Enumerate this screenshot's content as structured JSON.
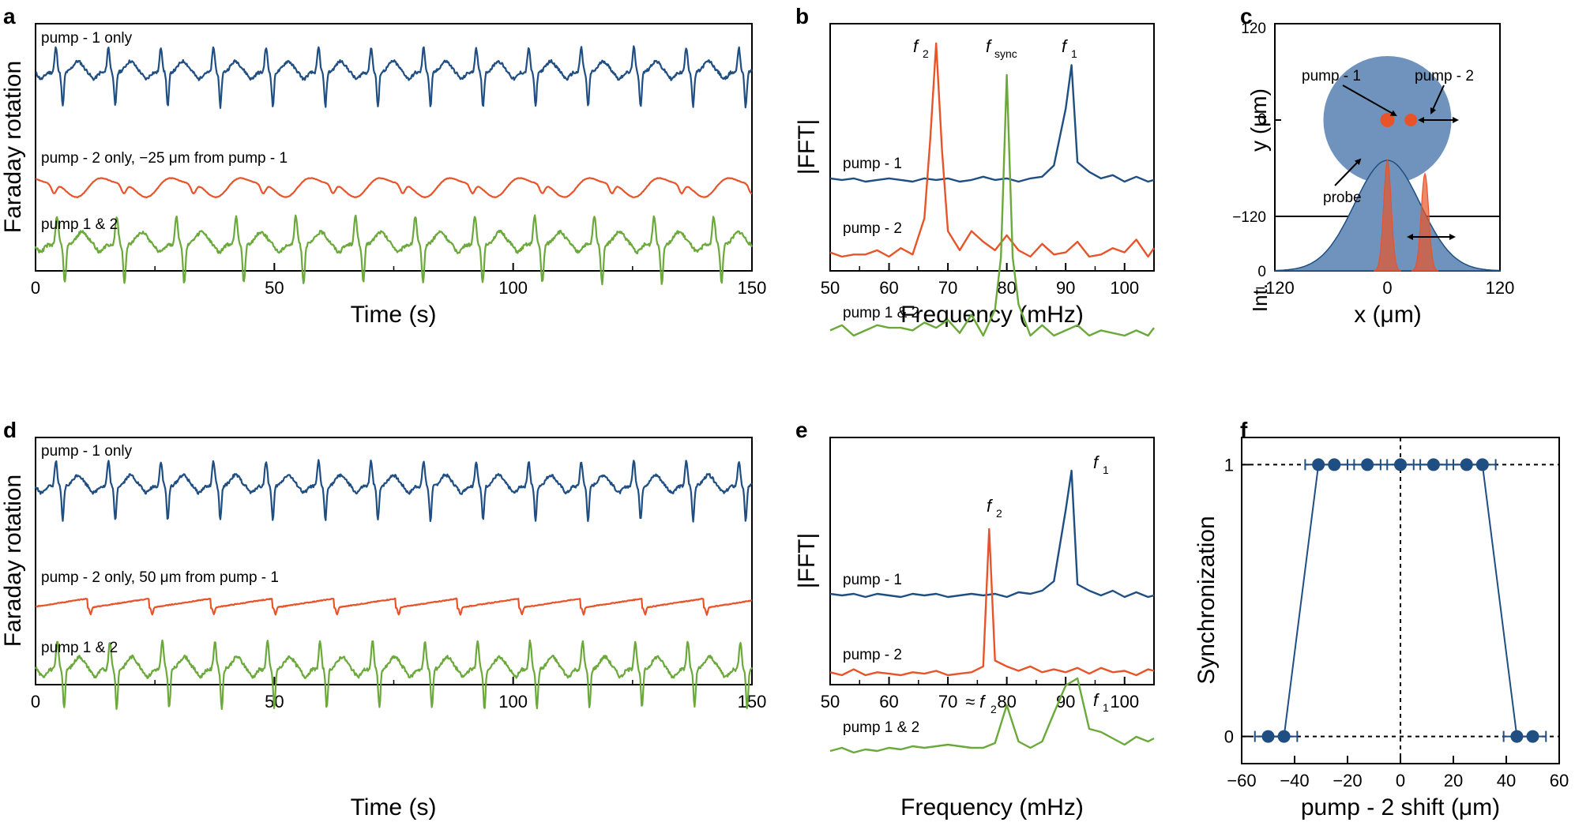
{
  "panels": {
    "a": {
      "letter": "a",
      "ylabel": "Faraday rotation",
      "xlabel": "Time (s)",
      "xticks": [
        "0",
        "50",
        "100",
        "150"
      ],
      "trace_labels": [
        "pump - 1 only",
        "pump - 2 only,  −25 μm from pump - 1",
        "pump 1 & 2"
      ]
    },
    "b": {
      "letter": "b",
      "ylabel": "|FFT|",
      "xlabel": "Frequency (mHz)",
      "xticks": [
        "50",
        "60",
        "70",
        "80",
        "90",
        "100"
      ],
      "trace_labels": [
        "pump - 1",
        "pump - 2",
        "pump 1 & 2"
      ],
      "peak_labels": [
        {
          "base": "f",
          "sub": "2"
        },
        {
          "base": "f",
          "sub": "sync"
        },
        {
          "base": "f",
          "sub": "1"
        }
      ]
    },
    "c": {
      "letter": "c",
      "ylabel_top": "y (μm)",
      "ylabel_bottom": "Int.",
      "xlabel": "x (μm)",
      "yticks_top": [
        "120",
        "0",
        "−120"
      ],
      "ytick_bottom": "0",
      "xticks": [
        "−120",
        "0",
        "120"
      ],
      "annotations": [
        "pump - 1",
        "pump - 2",
        "probe"
      ]
    },
    "d": {
      "letter": "d",
      "ylabel": "Faraday rotation",
      "xlabel": "Time (s)",
      "xticks": [
        "0",
        "50",
        "100",
        "150"
      ],
      "trace_labels": [
        "pump - 1 only",
        "pump - 2 only, 50 μm from pump - 1",
        "pump 1 & 2"
      ]
    },
    "e": {
      "letter": "e",
      "ylabel": "|FFT|",
      "xlabel": "Frequency (mHz)",
      "xticks": [
        "50",
        "60",
        "70",
        "80",
        "90",
        "100"
      ],
      "trace_labels": [
        "pump - 1",
        "pump - 2",
        "pump 1 & 2"
      ],
      "peak_labels": [
        {
          "base": "f",
          "sub": "1"
        },
        {
          "base": "f",
          "sub": "2"
        },
        {
          "base": "≈ f",
          "sub": "2"
        },
        {
          "base": "f",
          "sub": "1"
        }
      ]
    },
    "f": {
      "letter": "f",
      "ylabel": "Synchronization",
      "xlabel": "pump - 2 shift (μm)",
      "xticks": [
        "−60",
        "−40",
        "−20",
        "0",
        "20",
        "40",
        "60"
      ],
      "yticks": [
        "0",
        "1"
      ]
    }
  },
  "colors": {
    "pump1": "#1f4e82",
    "pump2": "#e8542a",
    "both": "#6aa93a",
    "probe": "#6f93bd"
  },
  "chart_data": [
    {
      "panel": "a",
      "type": "line",
      "xlabel": "Time (s)",
      "ylabel": "Faraday rotation",
      "xlim": [
        0,
        150
      ],
      "series": [
        {
          "name": "pump - 1 only",
          "period_s": 11.0
        },
        {
          "name": "pump - 2 only,  −25 μm from pump - 1",
          "period_s": 14.6
        },
        {
          "name": "pump 1 & 2",
          "period_s": 12.5
        }
      ]
    },
    {
      "panel": "b",
      "type": "line",
      "xlabel": "Frequency (mHz)",
      "ylabel": "|FFT|",
      "xlim": [
        50,
        105
      ],
      "series": [
        {
          "name": "pump - 1",
          "x": [
            50,
            52,
            54,
            56,
            58,
            60,
            62,
            64,
            66,
            68,
            70,
            72,
            74,
            76,
            78,
            80,
            82,
            84,
            86,
            88,
            90,
            91,
            92,
            94,
            96,
            98,
            100,
            102,
            104,
            105
          ],
          "y": [
            0.02,
            0.01,
            0.02,
            0.0,
            0.01,
            0.02,
            0.01,
            0.0,
            0.02,
            0.01,
            0.02,
            0.0,
            0.01,
            0.03,
            0.01,
            0.02,
            0.0,
            0.02,
            0.03,
            0.1,
            0.45,
            0.72,
            0.12,
            0.06,
            0.02,
            0.04,
            0.0,
            0.03,
            0.0,
            0.01
          ]
        },
        {
          "name": "pump - 2",
          "x": [
            50,
            52,
            54,
            56,
            58,
            60,
            62,
            64,
            66,
            67,
            68,
            69,
            70,
            72,
            74,
            76,
            78,
            80,
            82,
            84,
            86,
            88,
            90,
            92,
            94,
            96,
            98,
            100,
            102,
            104,
            105
          ],
          "y": [
            0.02,
            0.0,
            0.01,
            0.01,
            0.03,
            0.0,
            0.04,
            0.01,
            0.18,
            0.55,
            1.0,
            0.5,
            0.12,
            0.03,
            0.12,
            0.07,
            0.03,
            0.1,
            0.03,
            0.0,
            0.06,
            0.01,
            0.02,
            0.07,
            0.0,
            0.01,
            0.04,
            0.02,
            0.08,
            0.0,
            0.04
          ]
        },
        {
          "name": "pump 1 & 2",
          "x": [
            50,
            52,
            54,
            56,
            58,
            60,
            62,
            64,
            66,
            68,
            70,
            72,
            74,
            76,
            78,
            79,
            80,
            81,
            82,
            84,
            86,
            88,
            90,
            92,
            94,
            96,
            98,
            100,
            102,
            104,
            105
          ],
          "y": [
            0.02,
            0.04,
            0.0,
            0.02,
            0.04,
            0.03,
            0.03,
            0.02,
            0.05,
            0.03,
            0.06,
            0.01,
            0.08,
            0.0,
            0.1,
            0.3,
            1.0,
            0.3,
            0.12,
            0.0,
            0.04,
            0.0,
            0.02,
            0.04,
            0.0,
            0.02,
            0.01,
            0.0,
            0.02,
            0.0,
            0.03
          ]
        }
      ]
    },
    {
      "panel": "c",
      "type": "area",
      "xlabel": "x (μm)",
      "xlim": [
        -120,
        120
      ],
      "ylim_top": [
        -120,
        120
      ],
      "probe_sigma_um": 35,
      "pump1_x_um": 0,
      "pump2_x_um": 40,
      "pump_sigma_um": 4
    },
    {
      "panel": "d",
      "type": "line",
      "xlabel": "Time (s)",
      "ylabel": "Faraday rotation",
      "xlim": [
        0,
        150
      ],
      "series": [
        {
          "name": "pump - 1 only",
          "period_s": 11.0
        },
        {
          "name": "pump - 2 only, 50 μm from pump - 1",
          "period_s": 12.9
        },
        {
          "name": "pump 1 & 2",
          "period_s": 11.0
        }
      ]
    },
    {
      "panel": "e",
      "type": "line",
      "xlabel": "Frequency (mHz)",
      "ylabel": "|FFT|",
      "xlim": [
        50,
        105
      ],
      "series": [
        {
          "name": "pump - 1",
          "x": [
            50,
            52,
            54,
            56,
            58,
            60,
            62,
            64,
            66,
            68,
            70,
            72,
            74,
            76,
            78,
            80,
            82,
            84,
            86,
            88,
            90,
            91,
            92,
            94,
            96,
            98,
            100,
            102,
            104,
            105
          ],
          "y": [
            0.02,
            0.01,
            0.02,
            0.0,
            0.02,
            0.01,
            0.0,
            0.02,
            0.01,
            0.02,
            0.0,
            0.01,
            0.02,
            0.01,
            0.02,
            0.0,
            0.03,
            0.02,
            0.04,
            0.1,
            0.55,
            0.8,
            0.08,
            0.04,
            0.01,
            0.04,
            0.0,
            0.03,
            0.0,
            0.01
          ]
        },
        {
          "name": "pump - 2",
          "x": [
            50,
            52,
            54,
            56,
            58,
            60,
            62,
            64,
            66,
            68,
            70,
            72,
            74,
            76,
            77,
            78,
            80,
            82,
            84,
            86,
            88,
            90,
            92,
            94,
            96,
            98,
            100,
            102,
            104,
            105
          ],
          "y": [
            0.02,
            0.0,
            0.04,
            0.0,
            0.02,
            0.01,
            0.0,
            0.02,
            0.01,
            0.03,
            0.0,
            0.01,
            0.02,
            0.06,
            1.0,
            0.1,
            0.06,
            0.03,
            0.06,
            0.02,
            0.04,
            0.02,
            0.05,
            0.01,
            0.05,
            0.02,
            0.03,
            0.0,
            0.04,
            0.03
          ]
        },
        {
          "name": "pump 1 & 2",
          "x": [
            50,
            52,
            54,
            56,
            58,
            60,
            62,
            64,
            66,
            68,
            70,
            72,
            74,
            76,
            78,
            80,
            82,
            84,
            86,
            88,
            90,
            92,
            94,
            96,
            98,
            100,
            102,
            104,
            105
          ],
          "y": [
            0.02,
            0.06,
            0.0,
            0.04,
            0.02,
            0.06,
            0.04,
            0.08,
            0.06,
            0.08,
            0.1,
            0.08,
            0.06,
            0.06,
            0.12,
            0.6,
            0.14,
            0.06,
            0.14,
            0.5,
            0.85,
            0.94,
            0.3,
            0.26,
            0.18,
            0.1,
            0.2,
            0.14,
            0.18
          ]
        }
      ]
    },
    {
      "panel": "f",
      "type": "scatter",
      "xlabel": "pump - 2 shift (μm)",
      "ylabel": "Synchronization",
      "xlim": [
        -60,
        60
      ],
      "ylim": [
        -0.1,
        1.1
      ],
      "x": [
        -50,
        -44,
        -31,
        -25,
        -12.5,
        0,
        12.5,
        25,
        31,
        44,
        50
      ],
      "y": [
        0,
        0,
        1,
        1,
        1,
        1,
        1,
        1,
        1,
        0,
        0
      ],
      "xerr": 5
    }
  ]
}
